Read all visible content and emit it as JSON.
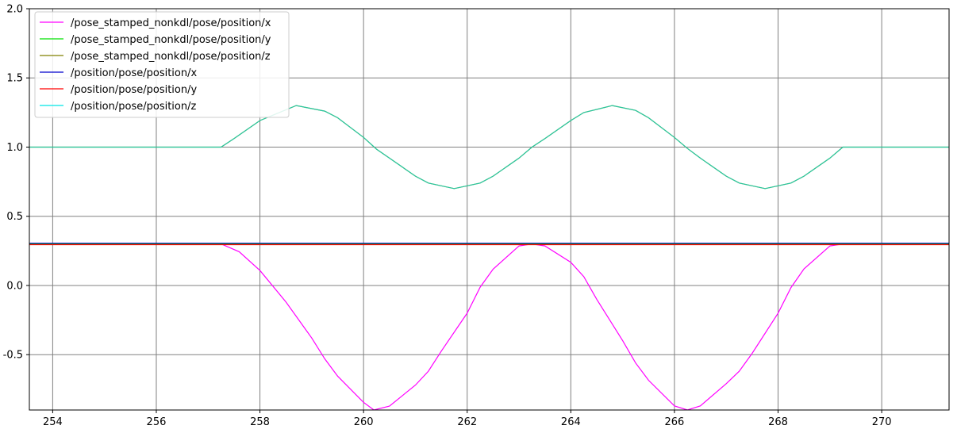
{
  "chart_data": {
    "type": "line",
    "title": "",
    "xlabel": "",
    "ylabel": "",
    "xlim": [
      253.55,
      271.3
    ],
    "ylim": [
      -0.9,
      2.0
    ],
    "xticks": [
      254,
      256,
      258,
      260,
      262,
      264,
      266,
      268,
      270
    ],
    "yticks": [
      -0.5,
      0.0,
      0.5,
      1.0,
      1.5,
      2.0
    ],
    "grid": true,
    "legend_position": "top-left",
    "series": [
      {
        "name": "/pose_stamped_nonkdl/pose/position/x",
        "color": "#ff00ff",
        "points": [
          [
            253.55,
            0.3
          ],
          [
            257.25,
            0.3
          ],
          [
            257.6,
            0.244
          ],
          [
            258.0,
            0.108
          ],
          [
            258.5,
            -0.118
          ],
          [
            259.0,
            -0.38
          ],
          [
            259.25,
            -0.53
          ],
          [
            259.5,
            -0.655
          ],
          [
            260.0,
            -0.845
          ],
          [
            260.2,
            -0.9
          ],
          [
            260.5,
            -0.872
          ],
          [
            261.0,
            -0.72
          ],
          [
            261.25,
            -0.62
          ],
          [
            261.5,
            -0.475
          ],
          [
            262.0,
            -0.2
          ],
          [
            262.25,
            -0.012
          ],
          [
            262.5,
            0.118
          ],
          [
            263.0,
            0.285
          ],
          [
            263.25,
            0.3
          ],
          [
            263.5,
            0.286
          ],
          [
            264.0,
            0.168
          ],
          [
            264.25,
            0.064
          ],
          [
            264.5,
            -0.1
          ],
          [
            265.0,
            -0.398
          ],
          [
            265.25,
            -0.56
          ],
          [
            265.5,
            -0.685
          ],
          [
            266.0,
            -0.87
          ],
          [
            266.25,
            -0.9
          ],
          [
            266.5,
            -0.87
          ],
          [
            267.0,
            -0.71
          ],
          [
            267.25,
            -0.62
          ],
          [
            267.5,
            -0.49
          ],
          [
            268.0,
            -0.2
          ],
          [
            268.25,
            -0.015
          ],
          [
            268.5,
            0.12
          ],
          [
            269.0,
            0.285
          ],
          [
            269.25,
            0.3
          ],
          [
            271.3,
            0.3
          ]
        ]
      },
      {
        "name": "/pose_stamped_nonkdl/pose/position/y",
        "color": "#00e000",
        "points": [
          [
            253.55,
            0.3
          ],
          [
            271.3,
            0.3
          ]
        ]
      },
      {
        "name": "/pose_stamped_nonkdl/pose/position/z",
        "color": "#808000",
        "points": [
          [
            253.55,
            1.0
          ],
          [
            257.25,
            1.0
          ],
          [
            257.5,
            1.062
          ],
          [
            258.0,
            1.192
          ],
          [
            258.7,
            1.3
          ],
          [
            259.25,
            1.26
          ],
          [
            259.5,
            1.212
          ],
          [
            260.0,
            1.07
          ],
          [
            260.25,
            0.985
          ],
          [
            260.5,
            0.92
          ],
          [
            261.0,
            0.79
          ],
          [
            261.25,
            0.74
          ],
          [
            261.75,
            0.7
          ],
          [
            262.25,
            0.74
          ],
          [
            262.5,
            0.79
          ],
          [
            263.0,
            0.92
          ],
          [
            263.25,
            1.0
          ],
          [
            263.5,
            1.062
          ],
          [
            264.0,
            1.192
          ],
          [
            264.25,
            1.25
          ],
          [
            264.8,
            1.3
          ],
          [
            265.25,
            1.265
          ],
          [
            265.5,
            1.212
          ],
          [
            266.0,
            1.07
          ],
          [
            266.25,
            0.99
          ],
          [
            266.5,
            0.92
          ],
          [
            267.0,
            0.79
          ],
          [
            267.25,
            0.74
          ],
          [
            267.75,
            0.7
          ],
          [
            268.25,
            0.74
          ],
          [
            268.5,
            0.79
          ],
          [
            269.0,
            0.92
          ],
          [
            269.25,
            1.0
          ],
          [
            271.3,
            1.0
          ]
        ]
      },
      {
        "name": "/position/pose/position/x",
        "color": "#0000cc",
        "points": [
          [
            253.55,
            0.305
          ],
          [
            271.3,
            0.305
          ]
        ]
      },
      {
        "name": "/position/pose/position/y",
        "color": "#ff0000",
        "points": [
          [
            253.55,
            0.295
          ],
          [
            271.3,
            0.295
          ]
        ]
      },
      {
        "name": "/position/pose/position/z",
        "color": "#00e5e5",
        "points": [
          [
            253.55,
            1.0
          ],
          [
            257.25,
            1.0
          ],
          [
            257.5,
            1.062
          ],
          [
            258.0,
            1.192
          ],
          [
            258.7,
            1.3
          ],
          [
            259.25,
            1.26
          ],
          [
            259.5,
            1.212
          ],
          [
            260.0,
            1.07
          ],
          [
            260.25,
            0.985
          ],
          [
            260.5,
            0.92
          ],
          [
            261.0,
            0.79
          ],
          [
            261.25,
            0.74
          ],
          [
            261.75,
            0.7
          ],
          [
            262.25,
            0.74
          ],
          [
            262.5,
            0.79
          ],
          [
            263.0,
            0.92
          ],
          [
            263.25,
            1.0
          ],
          [
            263.5,
            1.062
          ],
          [
            264.0,
            1.192
          ],
          [
            264.25,
            1.25
          ],
          [
            264.8,
            1.3
          ],
          [
            265.25,
            1.265
          ],
          [
            265.5,
            1.212
          ],
          [
            266.0,
            1.07
          ],
          [
            266.25,
            0.99
          ],
          [
            266.5,
            0.92
          ],
          [
            267.0,
            0.79
          ],
          [
            267.25,
            0.74
          ],
          [
            267.75,
            0.7
          ],
          [
            268.25,
            0.74
          ],
          [
            268.5,
            0.79
          ],
          [
            269.0,
            0.92
          ],
          [
            269.25,
            1.0
          ],
          [
            271.3,
            1.0
          ]
        ]
      }
    ]
  }
}
